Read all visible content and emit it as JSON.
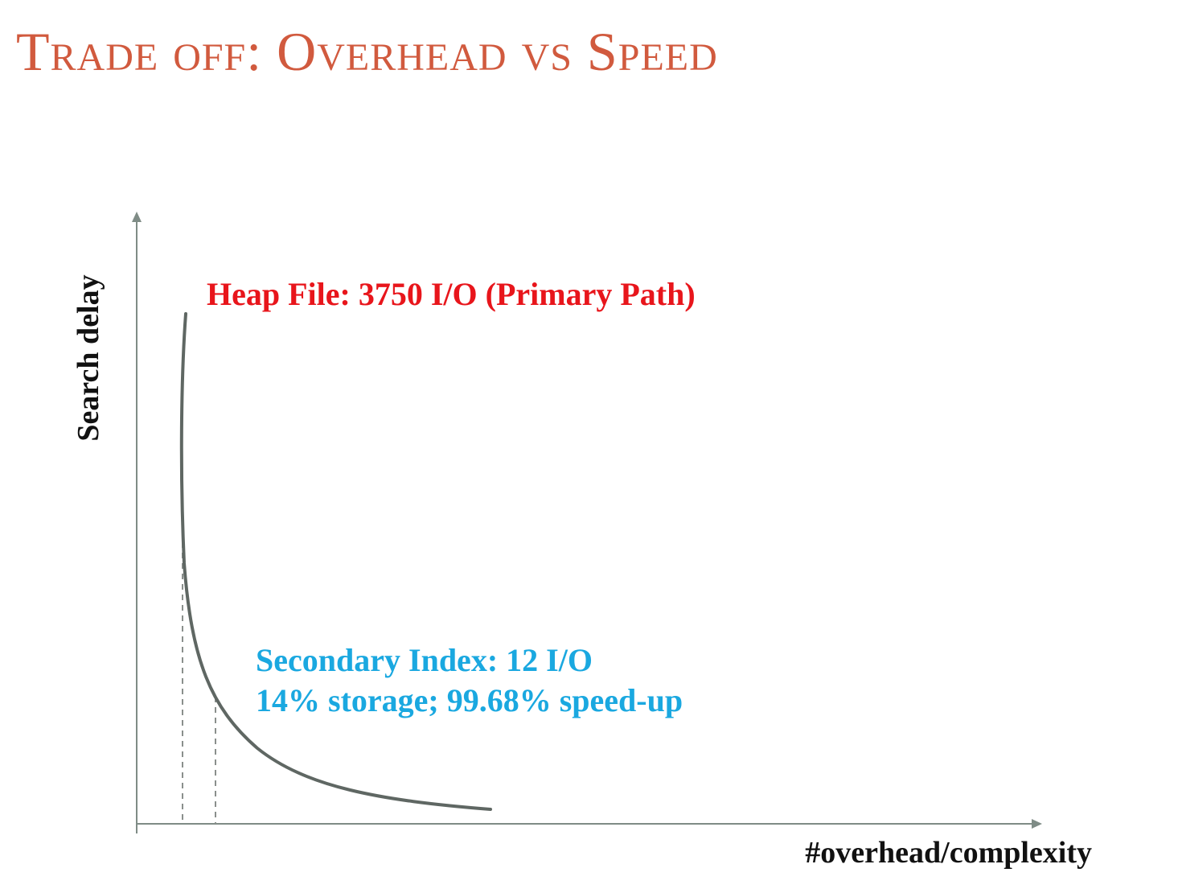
{
  "slide": {
    "title": "Trade off: Overhead vs Speed"
  },
  "diagram": {
    "y_axis_label": "Search delay",
    "x_axis_label": "#overhead/complexity",
    "heap_annotation": "Heap File: 3750 I/O (Primary Path)",
    "secondary_annotation_line1": "Secondary Index: 12 I/O",
    "secondary_annotation_line2": "14% storage; 99.68% speed-up"
  },
  "colors": {
    "title": "#d15a3e",
    "heap_annotation": "#e8151b",
    "secondary_annotation": "#1aa8e0",
    "curve": "#5f6763",
    "axis": "#7f8c86",
    "guide": "#8a8f8c"
  }
}
